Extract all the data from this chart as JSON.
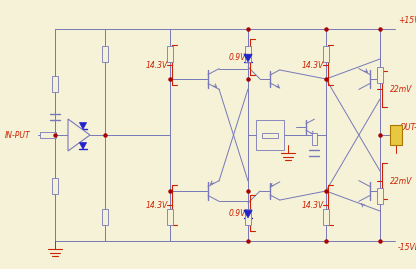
{
  "bg_color": "#f5f2d8",
  "wire_color": "#7878b8",
  "red_color": "#cc2200",
  "blue_color": "#2222cc",
  "dot_color": "#aa0000",
  "figsize": [
    4.16,
    2.69
  ],
  "dpi": 100,
  "xlim": [
    0,
    416
  ],
  "ylim": [
    0,
    269
  ]
}
